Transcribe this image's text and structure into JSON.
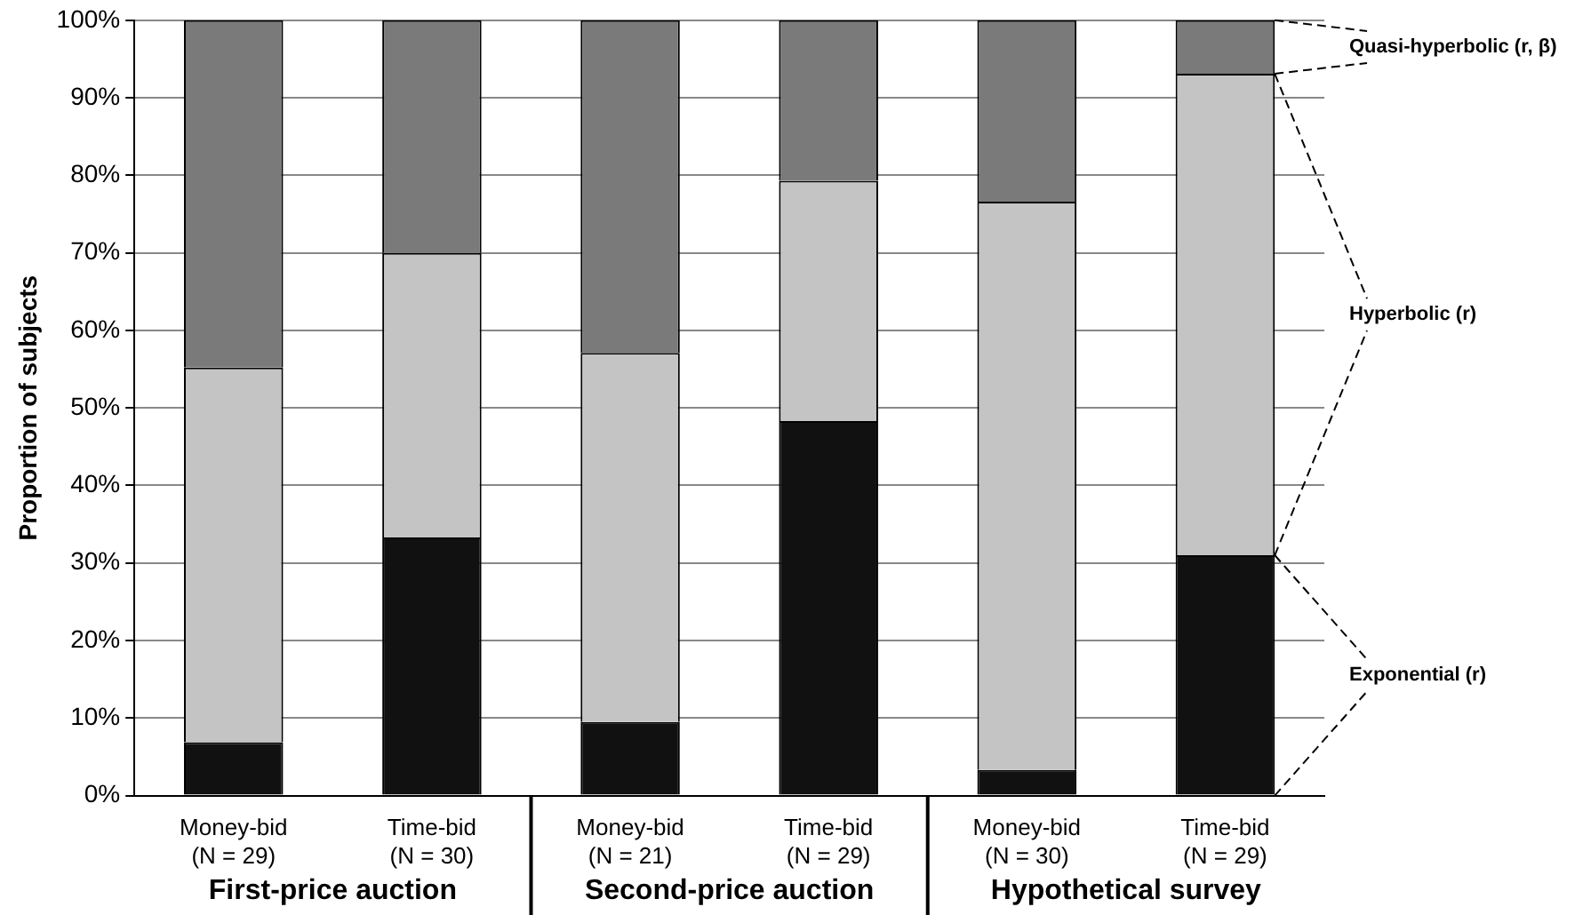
{
  "chart_data": {
    "type": "bar",
    "stacked": true,
    "ylabel": "Proportion of subjects",
    "categories": [
      "Money-bid\n(N = 29)",
      "Time-bid\n(N = 30)",
      "Money-bid\n(N = 21)",
      "Time-bid\n(N = 29)",
      "Money-bid\n(N = 30)",
      "Time-bid\n(N = 29)"
    ],
    "series": [
      {
        "name": "Exponential (r)",
        "color": "#111111",
        "values": [
          6.9,
          33.3,
          9.5,
          48.3,
          3.3,
          31.0
        ]
      },
      {
        "name": "Hyperbolic (r)",
        "color": "#c4c4c4",
        "values": [
          48.3,
          36.7,
          47.6,
          31.0,
          73.3,
          62.1
        ]
      },
      {
        "name": "Quasi-hyperbolic (r, β)",
        "color": "#7a7a7a",
        "values": [
          44.8,
          30.0,
          42.9,
          20.7,
          23.4,
          6.9
        ]
      }
    ],
    "ylim": [
      0,
      100
    ],
    "yticks": [
      {
        "value": 0,
        "label": "0%"
      },
      {
        "value": 10,
        "label": "10%"
      },
      {
        "value": 20,
        "label": "20%"
      },
      {
        "value": 30,
        "label": "30%"
      },
      {
        "value": 40,
        "label": "40%"
      },
      {
        "value": 50,
        "label": "50%"
      },
      {
        "value": 60,
        "label": "60%"
      },
      {
        "value": 70,
        "label": "70%"
      },
      {
        "value": 80,
        "label": "80%"
      },
      {
        "value": 90,
        "label": "90%"
      },
      {
        "value": 100,
        "label": "100%"
      }
    ],
    "grid": "y",
    "legend": "right",
    "annotations": [
      "First-price auction",
      "Second-price auction",
      "Hypothetical survey"
    ]
  }
}
